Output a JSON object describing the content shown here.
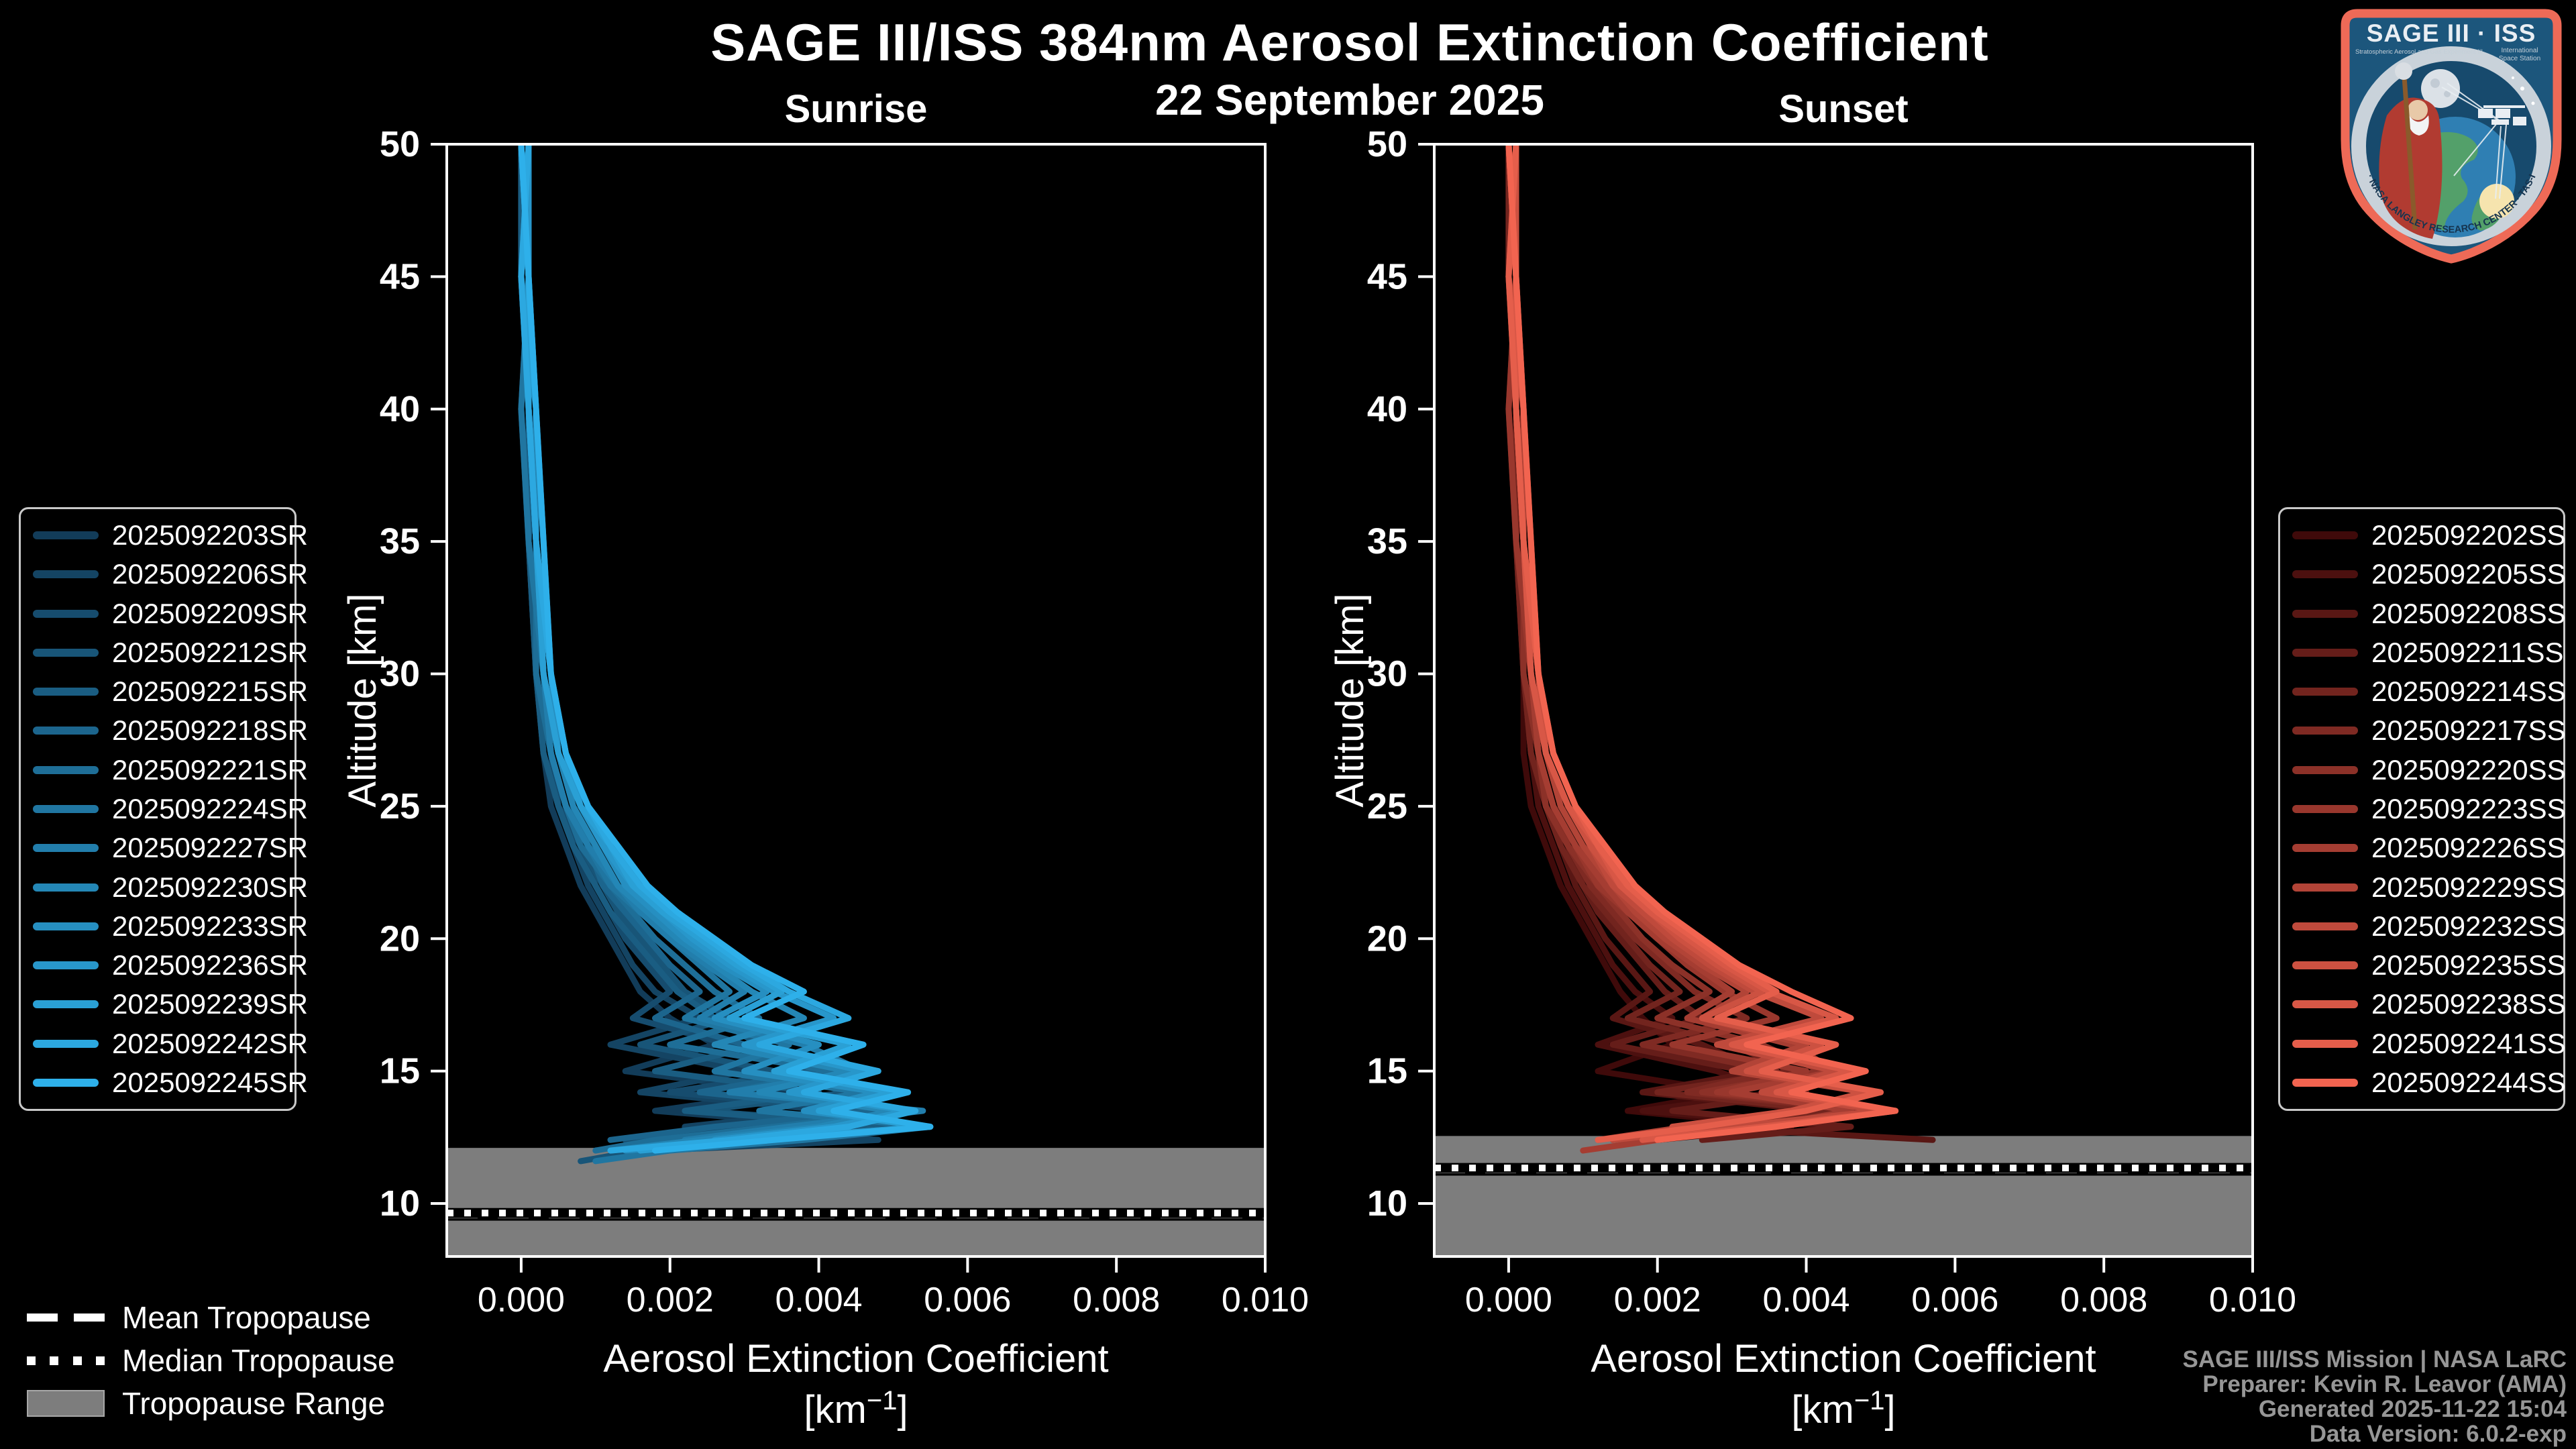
{
  "header": {
    "title": "SAGE III/ISS 384nm Aerosol Extinction Coefficient",
    "subtitle": "22 September 2025"
  },
  "chart_data": [
    {
      "type": "line",
      "title": "Sunrise",
      "xlabel": "Aerosol Extinction Coefficient",
      "xlabel_unit": {
        "prefix": "[km",
        "sup": "−1",
        "suffix": "]"
      },
      "ylabel": "Altitude [km]",
      "xlim": [
        -0.001,
        0.01
      ],
      "ylim": [
        8,
        50
      ],
      "x_ticks": [
        0.0,
        0.002,
        0.004,
        0.006,
        0.008,
        0.01
      ],
      "y_ticks": [
        10,
        15,
        20,
        25,
        30,
        35,
        40,
        45,
        50
      ],
      "grid": false,
      "legend_position": "outside-left",
      "ext_scale": 0.0001,
      "alts": [
        50,
        45,
        40,
        35,
        30,
        27,
        25,
        23.5,
        22,
        21,
        20,
        19,
        18,
        17,
        16,
        15,
        14.2,
        13.5,
        12.9,
        12.4,
        12.0,
        11.6
      ],
      "tropopause": {
        "mean_km": 9.58,
        "median_km": 9.64,
        "range_top_km": 12.1,
        "range_bottom_km": 8.0
      },
      "series": [
        {
          "name": "2025092203SR",
          "color": "#123c59",
          "values": [
            0,
            1,
            1,
            1,
            2,
            3,
            4,
            6,
            8,
            10,
            12,
            14,
            16,
            20,
            26,
            14,
            36,
            18,
            44,
            26,
            12
          ]
        },
        {
          "name": "2025092206SR",
          "color": "#144463",
          "values": [
            1,
            0,
            1,
            2,
            2,
            3,
            5,
            7,
            9,
            11,
            13,
            15,
            18,
            24,
            12,
            30,
            16,
            42,
            22,
            48,
            18
          ]
        },
        {
          "name": "2025092209SR",
          "color": "#164c6e",
          "values": [
            0,
            1,
            0,
            1,
            2,
            4,
            5,
            8,
            10,
            12,
            14,
            17,
            20,
            15,
            28,
            38,
            20,
            46,
            30,
            14
          ]
        },
        {
          "name": "2025092212SR",
          "color": "#185578",
          "values": [
            1,
            1,
            2,
            1,
            3,
            4,
            6,
            8,
            11,
            13,
            16,
            19,
            22,
            28,
            16,
            34,
            44,
            24,
            52,
            30,
            16,
            8
          ]
        },
        {
          "name": "2025092215SR",
          "color": "#1a5d82",
          "values": [
            0,
            0,
            1,
            1,
            2,
            3,
            5,
            7,
            10,
            12,
            15,
            18,
            21,
            26,
            32,
            18,
            40,
            22,
            50,
            28,
            14
          ]
        },
        {
          "name": "2025092218SR",
          "color": "#1c658d",
          "values": [
            1,
            0,
            1,
            2,
            3,
            4,
            6,
            9,
            11,
            14,
            17,
            20,
            24,
            18,
            30,
            40,
            24,
            48,
            26,
            12
          ]
        },
        {
          "name": "2025092221SR",
          "color": "#1e6e97",
          "values": [
            0,
            1,
            1,
            2,
            2,
            4,
            6,
            8,
            12,
            15,
            18,
            22,
            26,
            32,
            20,
            42,
            28,
            52,
            34,
            18,
            10
          ]
        },
        {
          "name": "2025092224SR",
          "color": "#2076a1",
          "values": [
            1,
            1,
            0,
            1,
            3,
            5,
            7,
            9,
            12,
            16,
            20,
            24,
            28,
            22,
            36,
            26,
            46,
            32,
            55,
            38,
            20,
            10
          ]
        },
        {
          "name": "2025092227SR",
          "color": "#227eac",
          "values": [
            0,
            1,
            1,
            2,
            3,
            4,
            6,
            9,
            13,
            16,
            20,
            25,
            30,
            24,
            38,
            46,
            28,
            54,
            36,
            22
          ]
        },
        {
          "name": "2025092230SR",
          "color": "#2487b6",
          "values": [
            1,
            0,
            2,
            2,
            3,
            5,
            7,
            10,
            13,
            17,
            21,
            26,
            31,
            38,
            26,
            44,
            32,
            50,
            40,
            24,
            12
          ]
        },
        {
          "name": "2025092233SR",
          "color": "#268fc1",
          "values": [
            0,
            1,
            1,
            2,
            4,
            5,
            8,
            11,
            14,
            18,
            22,
            27,
            33,
            26,
            40,
            30,
            48,
            38,
            55,
            30,
            14
          ]
        },
        {
          "name": "2025092236SR",
          "color": "#2897cb",
          "values": [
            1,
            1,
            2,
            3,
            4,
            6,
            8,
            11,
            15,
            19,
            23,
            28,
            34,
            42,
            30,
            46,
            36,
            52,
            42,
            26
          ]
        },
        {
          "name": "2025092239SR",
          "color": "#2aa0d5",
          "values": [
            0,
            1,
            1,
            2,
            3,
            5,
            8,
            12,
            15,
            19,
            24,
            29,
            35,
            28,
            44,
            34,
            50,
            40,
            54,
            32,
            16
          ]
        },
        {
          "name": "2025092242SR",
          "color": "#2ca8e0",
          "values": [
            1,
            0,
            1,
            2,
            4,
            6,
            9,
            12,
            16,
            20,
            25,
            30,
            36,
            44,
            32,
            48,
            38,
            53,
            44,
            28,
            12
          ]
        },
        {
          "name": "2025092245SR",
          "color": "#2eb0ea",
          "values": [
            0,
            1,
            2,
            3,
            4,
            6,
            9,
            13,
            17,
            21,
            26,
            31,
            38,
            30,
            46,
            36,
            52,
            42,
            55,
            34,
            18
          ]
        }
      ]
    },
    {
      "type": "line",
      "title": "Sunset",
      "xlabel": "Aerosol Extinction Coefficient",
      "xlabel_unit": {
        "prefix": "[km",
        "sup": "−1",
        "suffix": "]"
      },
      "ylabel": "Altitude [km]",
      "xlim": [
        -0.001,
        0.01
      ],
      "ylim": [
        8,
        50
      ],
      "x_ticks": [
        0.0,
        0.002,
        0.004,
        0.006,
        0.008,
        0.01
      ],
      "y_ticks": [
        10,
        15,
        20,
        25,
        30,
        35,
        40,
        45,
        50
      ],
      "grid": false,
      "legend_position": "outside-right",
      "ext_scale": 0.0001,
      "alts": [
        50,
        45,
        40,
        35,
        30,
        27,
        25,
        23.5,
        22,
        21,
        20,
        19,
        18,
        17,
        16,
        15,
        14.2,
        13.5,
        12.9,
        12.4,
        12.0,
        11.6
      ],
      "tropopause": {
        "mean_km": 11.28,
        "median_km": 11.34,
        "range_top_km": 12.55,
        "range_bottom_km": 8.0
      },
      "series": [
        {
          "name": "2025092202SS",
          "color": "#3f0a0a",
          "values": [
            0,
            1,
            1,
            1,
            2,
            2,
            3,
            5,
            7,
            9,
            11,
            13,
            15,
            18,
            22,
            12,
            30,
            16,
            38,
            20
          ]
        },
        {
          "name": "2025092205SS",
          "color": "#4c100f",
          "values": [
            1,
            0,
            1,
            2,
            2,
            3,
            4,
            6,
            8,
            10,
            12,
            14,
            17,
            22,
            12,
            28,
            36,
            18,
            44
          ]
        },
        {
          "name": "2025092208SS",
          "color": "#591714",
          "values": [
            0,
            1,
            0,
            1,
            2,
            3,
            5,
            7,
            9,
            11,
            13,
            16,
            19,
            14,
            26,
            34,
            18,
            42,
            24,
            57
          ]
        },
        {
          "name": "2025092211SS",
          "color": "#651d19",
          "values": [
            1,
            1,
            2,
            1,
            3,
            4,
            5,
            8,
            10,
            12,
            15,
            18,
            21,
            26,
            14,
            32,
            40,
            22,
            46,
            26
          ]
        },
        {
          "name": "2025092214SS",
          "color": "#72241e",
          "values": [
            0,
            0,
            1,
            1,
            2,
            3,
            5,
            7,
            10,
            13,
            16,
            19,
            23,
            16,
            30,
            38,
            20,
            44,
            28
          ]
        },
        {
          "name": "2025092217SS",
          "color": "#7f2a23",
          "values": [
            1,
            0,
            1,
            2,
            3,
            4,
            6,
            8,
            11,
            14,
            17,
            21,
            25,
            32,
            18,
            36,
            24,
            48,
            30,
            14
          ]
        },
        {
          "name": "2025092220SS",
          "color": "#8c3128",
          "values": [
            0,
            1,
            1,
            2,
            2,
            4,
            5,
            8,
            12,
            15,
            18,
            22,
            27,
            20,
            34,
            42,
            26,
            50,
            32,
            16
          ]
        },
        {
          "name": "2025092223SS",
          "color": "#99372d",
          "values": [
            1,
            1,
            0,
            1,
            3,
            4,
            6,
            9,
            12,
            16,
            20,
            24,
            29,
            36,
            22,
            40,
            28,
            52,
            36,
            18
          ]
        },
        {
          "name": "2025092226SS",
          "color": "#a53d32",
          "values": [
            0,
            1,
            1,
            2,
            3,
            4,
            6,
            9,
            13,
            16,
            20,
            25,
            30,
            24,
            38,
            44,
            30,
            46,
            34,
            20,
            10
          ]
        },
        {
          "name": "2025092229SS",
          "color": "#b24437",
          "values": [
            1,
            0,
            2,
            2,
            3,
            5,
            7,
            10,
            14,
            17,
            21,
            26,
            32,
            26,
            40,
            30,
            48,
            38,
            24,
            12
          ]
        },
        {
          "name": "2025092232SS",
          "color": "#bf4a3c",
          "values": [
            0,
            1,
            1,
            2,
            4,
            5,
            8,
            11,
            14,
            18,
            22,
            27,
            33,
            42,
            28,
            44,
            34,
            50,
            30,
            14
          ]
        },
        {
          "name": "2025092235SS",
          "color": "#cc5141",
          "values": [
            1,
            1,
            2,
            3,
            4,
            5,
            8,
            11,
            15,
            19,
            23,
            28,
            34,
            26,
            42,
            32,
            48,
            38,
            22
          ]
        },
        {
          "name": "2025092238SS",
          "color": "#d85746",
          "values": [
            0,
            1,
            1,
            2,
            3,
            5,
            8,
            12,
            15,
            19,
            24,
            29,
            35,
            44,
            30,
            46,
            36,
            52,
            34,
            18
          ]
        },
        {
          "name": "2025092241SS",
          "color": "#e55e4b",
          "values": [
            1,
            0,
            1,
            2,
            4,
            6,
            9,
            12,
            16,
            20,
            25,
            30,
            36,
            28,
            44,
            34,
            50,
            40,
            26,
            12
          ]
        },
        {
          "name": "2025092244SS",
          "color": "#f26450",
          "values": [
            0,
            1,
            2,
            3,
            4,
            6,
            9,
            13,
            17,
            21,
            26,
            31,
            38,
            46,
            32,
            48,
            38,
            52,
            36,
            20
          ]
        }
      ]
    }
  ],
  "tropo_legend": {
    "items": [
      {
        "label": "Mean Tropopause",
        "style": "dashed"
      },
      {
        "label": "Median Tropopause",
        "style": "dotted"
      },
      {
        "label": "Tropopause Range",
        "style": "band"
      }
    ]
  },
  "colors": {
    "background": "#000000",
    "axis": "#ffffff",
    "tropopause_band": "#7d7d7d",
    "credits_text": "#969696",
    "legend_border": "#c9c9c9",
    "logo_border": "#ee6a57",
    "logo_field": "#1c567c"
  },
  "credits": {
    "lines": [
      "SAGE III/ISS Mission | NASA LaRC",
      "Preparer: Kevin R. Leavor (AMA)",
      "Generated 2025-11-22 15:04",
      "Data Version: 6.0.2-exp"
    ]
  },
  "logo": {
    "title": "SAGE III · ISS",
    "subtitle_left": "Stratospheric Aerosol and Gas Experiment III",
    "subtitle_right_1": "International",
    "subtitle_right_2": "Space Station",
    "ring_text": "BALL · NASA LANGLEY RESEARCH CENTER · TAS-I · ESA"
  }
}
